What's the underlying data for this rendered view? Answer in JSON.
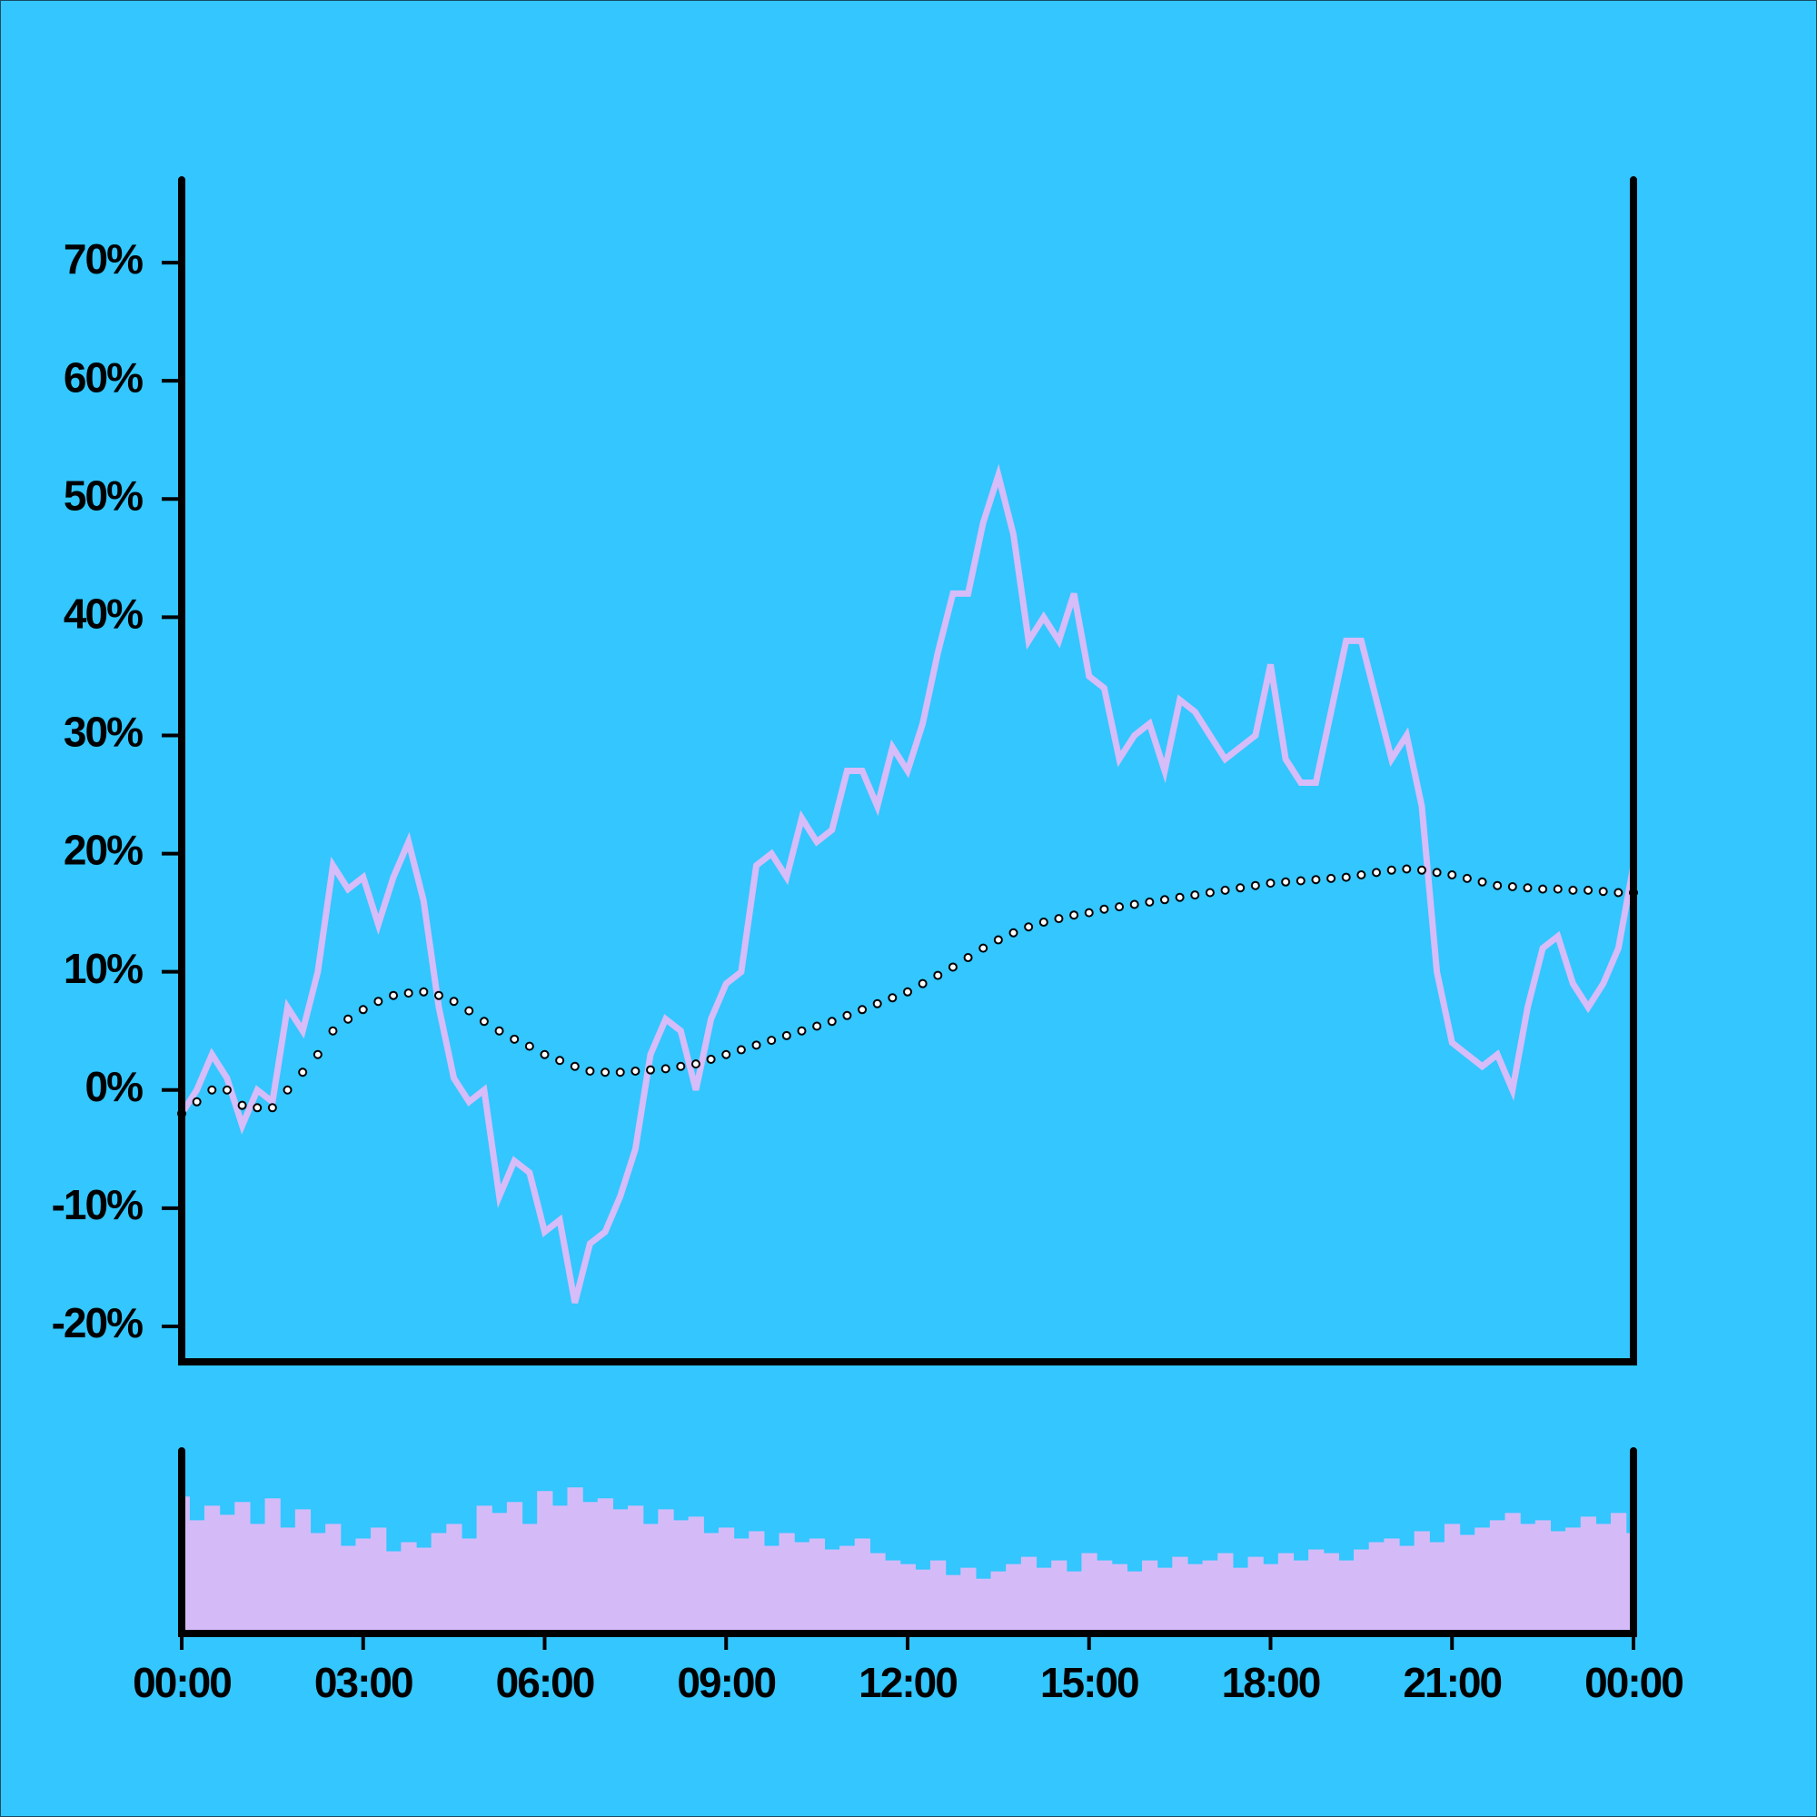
{
  "chart_data": [
    {
      "type": "line",
      "x": [
        0,
        0.25,
        0.5,
        0.75,
        1,
        1.25,
        1.5,
        1.75,
        2,
        2.25,
        2.5,
        2.75,
        3,
        3.25,
        3.5,
        3.75,
        4,
        4.25,
        4.5,
        4.75,
        5,
        5.25,
        5.5,
        5.75,
        6,
        6.25,
        6.5,
        6.75,
        7,
        7.25,
        7.5,
        7.75,
        8,
        8.25,
        8.5,
        8.75,
        9,
        9.25,
        9.5,
        9.75,
        10,
        10.25,
        10.5,
        10.75,
        11,
        11.25,
        11.5,
        11.75,
        12,
        12.25,
        12.5,
        12.75,
        13,
        13.25,
        13.5,
        13.75,
        14,
        14.25,
        14.5,
        14.75,
        15,
        15.25,
        15.5,
        15.75,
        16,
        16.25,
        16.5,
        16.75,
        17,
        17.25,
        17.5,
        17.75,
        18,
        18.25,
        18.5,
        18.75,
        19,
        19.25,
        19.5,
        19.75,
        20,
        20.25,
        20.5,
        20.75,
        21,
        21.25,
        21.5,
        21.75,
        22,
        22.25,
        22.5,
        22.75,
        23,
        23.25,
        23.5,
        23.75,
        24
      ],
      "xlim": [
        0,
        24
      ],
      "ylim": [
        -23,
        77
      ],
      "yticks": [
        {
          "value": -20,
          "label": "-20%"
        },
        {
          "value": -10,
          "label": "-10%"
        },
        {
          "value": 0,
          "label": "0%"
        },
        {
          "value": 10,
          "label": "10%"
        },
        {
          "value": 20,
          "label": "20%"
        },
        {
          "value": 30,
          "label": "30%"
        },
        {
          "value": 40,
          "label": "40%"
        },
        {
          "value": 50,
          "label": "50%"
        },
        {
          "value": 60,
          "label": "60%"
        },
        {
          "value": 70,
          "label": "70%"
        }
      ],
      "series": [
        {
          "color": "#d6bcf8",
          "style": "line",
          "values": [
            -2,
            0,
            3,
            1,
            -3,
            0,
            -1,
            7,
            5,
            10,
            19,
            17,
            18,
            14,
            18,
            21,
            16,
            7,
            1,
            -1,
            0,
            -9,
            -6,
            -7,
            -12,
            -11,
            -18,
            -13,
            -12,
            -9,
            -5,
            3,
            6,
            5,
            0,
            6,
            9,
            10,
            19,
            20,
            18,
            23,
            21,
            22,
            27,
            27,
            24,
            29,
            27,
            31,
            37,
            42,
            42,
            48,
            52,
            47,
            38,
            40,
            38,
            42,
            35,
            34,
            28,
            30,
            31,
            27,
            33,
            32,
            30,
            28,
            29,
            30,
            36,
            28,
            26,
            26,
            32,
            38,
            38,
            33,
            28,
            30,
            24,
            10,
            4,
            3,
            2,
            3,
            0,
            7,
            12,
            13,
            9,
            7,
            9,
            12,
            19
          ]
        },
        {
          "color": "#000000",
          "style": "dots",
          "values": [
            -2,
            -1,
            0,
            0,
            -1.3,
            -1.5,
            -1.5,
            0,
            1.5,
            3,
            5,
            6,
            6.8,
            7.5,
            8,
            8.2,
            8.3,
            8,
            7.5,
            6.7,
            5.8,
            5,
            4.3,
            3.7,
            3,
            2.5,
            2,
            1.6,
            1.5,
            1.5,
            1.6,
            1.7,
            1.8,
            2,
            2.2,
            2.6,
            3,
            3.4,
            3.8,
            4.2,
            4.6,
            5,
            5.4,
            5.8,
            6.3,
            6.8,
            7.3,
            7.8,
            8.3,
            9,
            9.7,
            10.4,
            11.2,
            12,
            12.7,
            13.3,
            13.8,
            14.2,
            14.5,
            14.8,
            15,
            15.3,
            15.5,
            15.7,
            15.9,
            16.1,
            16.3,
            16.5,
            16.7,
            16.9,
            17.1,
            17.3,
            17.5,
            17.6,
            17.7,
            17.8,
            17.9,
            18,
            18.2,
            18.4,
            18.6,
            18.7,
            18.6,
            18.4,
            18.2,
            17.9,
            17.6,
            17.3,
            17.2,
            17.1,
            17,
            17,
            16.9,
            16.9,
            16.8,
            16.7,
            16.7
          ]
        }
      ]
    },
    {
      "type": "bar",
      "x": [
        0,
        0.25,
        0.5,
        0.75,
        1,
        1.25,
        1.5,
        1.75,
        2,
        2.25,
        2.5,
        2.75,
        3,
        3.25,
        3.5,
        3.75,
        4,
        4.25,
        4.5,
        4.75,
        5,
        5.25,
        5.5,
        5.75,
        6,
        6.25,
        6.5,
        6.75,
        7,
        7.25,
        7.5,
        7.75,
        8,
        8.25,
        8.5,
        8.75,
        9,
        9.25,
        9.5,
        9.75,
        10,
        10.25,
        10.5,
        10.75,
        11,
        11.25,
        11.5,
        11.75,
        12,
        12.25,
        12.5,
        12.75,
        13,
        13.25,
        13.5,
        13.75,
        14,
        14.25,
        14.5,
        14.75,
        15,
        15.25,
        15.5,
        15.75,
        16,
        16.25,
        16.5,
        16.75,
        17,
        17.25,
        17.5,
        17.75,
        18,
        18.25,
        18.5,
        18.75,
        19,
        19.25,
        19.5,
        19.75,
        20,
        20.25,
        20.5,
        20.75,
        21,
        21.25,
        21.5,
        21.75,
        22,
        22.25,
        22.5,
        22.75,
        23,
        23.25,
        23.5,
        23.75,
        24
      ],
      "xlim": [
        0,
        24
      ],
      "ylim": [
        0,
        100
      ],
      "color": "#d4bbf8",
      "xticks": [
        {
          "value": 0,
          "label": "00:00"
        },
        {
          "value": 3,
          "label": "03:00"
        },
        {
          "value": 6,
          "label": "06:00"
        },
        {
          "value": 9,
          "label": "09:00"
        },
        {
          "value": 12,
          "label": "12:00"
        },
        {
          "value": 15,
          "label": "15:00"
        },
        {
          "value": 18,
          "label": "18:00"
        },
        {
          "value": 21,
          "label": "21:00"
        },
        {
          "value": 24,
          "label": "00:00"
        }
      ],
      "values": [
        75,
        62,
        70,
        65,
        72,
        60,
        74,
        58,
        68,
        55,
        60,
        48,
        52,
        58,
        45,
        50,
        47,
        55,
        60,
        52,
        70,
        66,
        72,
        60,
        78,
        70,
        80,
        72,
        74,
        68,
        70,
        60,
        68,
        62,
        64,
        55,
        58,
        52,
        56,
        48,
        55,
        50,
        52,
        46,
        48,
        52,
        44,
        40,
        38,
        35,
        40,
        32,
        36,
        30,
        34,
        38,
        42,
        36,
        40,
        34,
        44,
        40,
        38,
        34,
        40,
        36,
        42,
        38,
        40,
        44,
        36,
        42,
        38,
        44,
        40,
        46,
        44,
        40,
        46,
        50,
        52,
        48,
        56,
        50,
        60,
        54,
        58,
        62,
        66,
        60,
        62,
        56,
        58,
        64,
        60,
        66,
        55
      ]
    }
  ]
}
